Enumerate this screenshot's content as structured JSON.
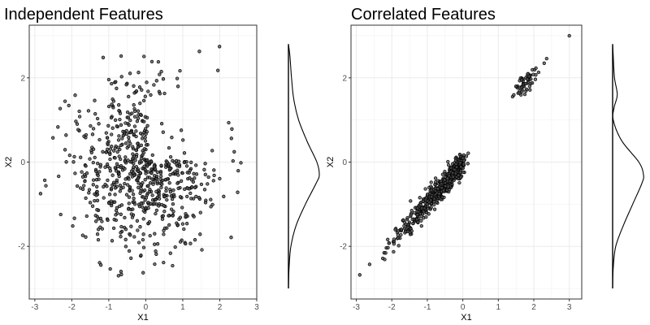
{
  "chart_data": [
    {
      "type": "scatter",
      "title": "Independent Features",
      "xlabel": "X1",
      "ylabel": "X2",
      "xlim": [
        -3.15,
        3.0
      ],
      "ylim": [
        -3.25,
        3.25
      ],
      "xticks": [
        -3,
        -2,
        -1,
        0,
        1,
        2,
        3
      ],
      "yticks": [
        -2,
        0,
        2
      ],
      "grid": true,
      "point_color": "#000000",
      "marginal": {
        "type": "density",
        "y": [
          -3.0,
          -2.5,
          -2.0,
          -1.5,
          -1.0,
          -0.5,
          -0.3,
          0.0,
          0.5,
          1.0,
          1.5,
          2.0,
          2.5,
          2.8
        ],
        "density": [
          0.0,
          0.02,
          0.08,
          0.25,
          0.55,
          0.9,
          1.0,
          0.92,
          0.6,
          0.33,
          0.17,
          0.1,
          0.05,
          0.0
        ]
      }
    },
    {
      "type": "scatter",
      "title": "Correlated Features",
      "xlabel": "X1",
      "ylabel": "X2",
      "xlim": [
        -3.15,
        3.35
      ],
      "ylim": [
        -3.25,
        3.25
      ],
      "xticks": [
        -3,
        -2,
        -1,
        0,
        1,
        2,
        3
      ],
      "yticks": [
        -2,
        0,
        2
      ],
      "grid": true,
      "point_color": "#000000",
      "marginal": {
        "type": "density",
        "y": [
          -3.0,
          -2.5,
          -2.0,
          -1.5,
          -1.0,
          -0.5,
          -0.3,
          0.0,
          0.5,
          1.0,
          1.3,
          1.6,
          2.0,
          2.5,
          2.8
        ],
        "density": [
          0.0,
          0.02,
          0.1,
          0.35,
          0.65,
          0.95,
          1.0,
          0.85,
          0.3,
          0.02,
          0.05,
          0.15,
          0.06,
          0.02,
          0.0
        ]
      }
    }
  ]
}
